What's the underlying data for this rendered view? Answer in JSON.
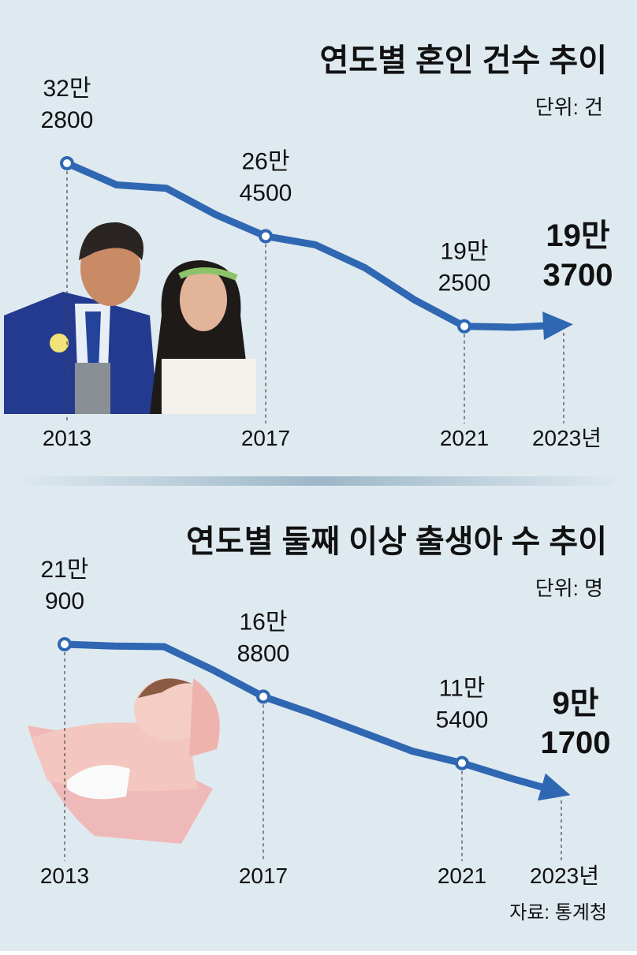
{
  "chart_data": [
    {
      "type": "line",
      "title": "연도별 혼인 건수 추이",
      "unit": "단위: 건",
      "categories": [
        "2013",
        null,
        null,
        null,
        "2017",
        null,
        null,
        null,
        "2021",
        null,
        "2023년"
      ],
      "values": [
        322800,
        305500,
        302800,
        281600,
        264500,
        257600,
        239200,
        213500,
        192500,
        191700,
        193700
      ],
      "value_labels": [
        "32만\n2800",
        null,
        null,
        null,
        "26만\n4500",
        null,
        null,
        null,
        "19만\n2500",
        null,
        "19만\n3700"
      ],
      "color": "#2f67b2"
    },
    {
      "type": "line",
      "title": "연도별 둘째 이상 출생아 수 추이",
      "unit": "단위: 명",
      "categories": [
        "2013",
        null,
        null,
        null,
        "2017",
        null,
        null,
        null,
        "2021",
        null,
        "2023년"
      ],
      "values": [
        210900,
        209500,
        209000,
        190000,
        168800,
        155000,
        140000,
        125000,
        115400,
        103000,
        91700
      ],
      "value_labels": [
        "21만\n900",
        null,
        null,
        null,
        "16만\n8800",
        null,
        null,
        null,
        "11만\n5400",
        null,
        "9만\n1700"
      ],
      "color": "#2f67b2"
    }
  ],
  "source": "자료: 통계청"
}
